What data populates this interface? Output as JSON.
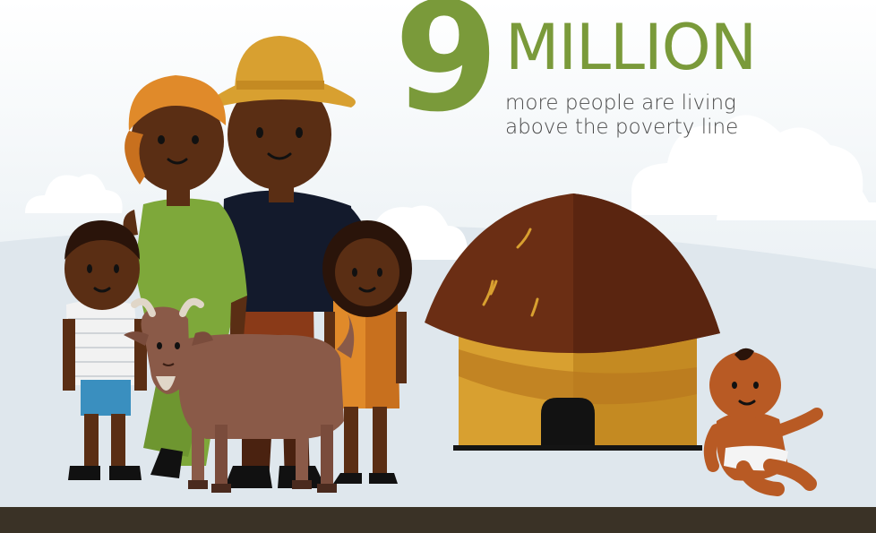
{
  "headline": {
    "number": "9",
    "word": "MILLION",
    "subtitle_line1": "more people are living",
    "subtitle_line2": "above the poverty line"
  },
  "colors": {
    "accent": "#7a9a3a",
    "sky_top": "#ffffff",
    "sky_bottom": "#dde6ec",
    "footer": "#3a3226",
    "skin": "#5a2e14",
    "hut_roof": "#6b2e14",
    "hut_wall": "#d8a030",
    "goat": "#8a5a48"
  },
  "icons": [
    "cloud-icon",
    "family-illustration",
    "goat-illustration",
    "hut-illustration",
    "baby-illustration"
  ]
}
